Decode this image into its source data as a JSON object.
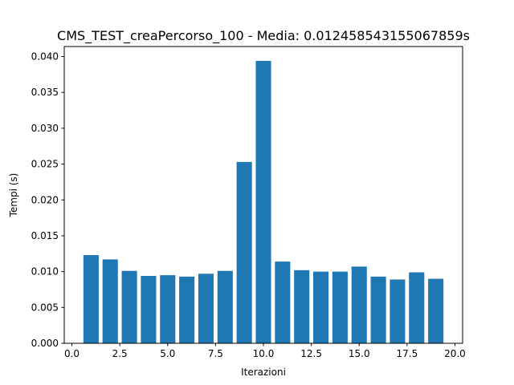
{
  "chart_data": {
    "type": "bar",
    "title": "CMS_TEST_creaPercorso_100 - Media: 0.012458543155067859s",
    "xlabel": "Iterazioni",
    "ylabel": "Tempi (s)",
    "x": [
      1,
      2,
      3,
      4,
      5,
      6,
      7,
      8,
      9,
      10,
      11,
      12,
      13,
      14,
      15,
      16,
      17,
      18,
      19
    ],
    "values": [
      0.0123,
      0.0117,
      0.0101,
      0.0094,
      0.0095,
      0.0093,
      0.0097,
      0.0101,
      0.0253,
      0.0394,
      0.0114,
      0.0102,
      0.01,
      0.01,
      0.0107,
      0.0093,
      0.0089,
      0.0099,
      0.009
    ],
    "xlim": [
      -0.4,
      20.4
    ],
    "ylim": [
      0,
      0.0414
    ],
    "xticks": [
      0.0,
      2.5,
      5.0,
      7.5,
      10.0,
      12.5,
      15.0,
      17.5,
      20.0
    ],
    "xtick_labels": [
      "0.0",
      "2.5",
      "5.0",
      "7.5",
      "10.0",
      "12.5",
      "15.0",
      "17.5",
      "20.0"
    ],
    "yticks": [
      0.0,
      0.005,
      0.01,
      0.015,
      0.02,
      0.025,
      0.03,
      0.035,
      0.04
    ],
    "ytick_labels": [
      "0.000",
      "0.005",
      "0.010",
      "0.015",
      "0.020",
      "0.025",
      "0.030",
      "0.035",
      "0.040"
    ],
    "bar_width": 0.8,
    "bar_color": "#1f77b4",
    "grid": false,
    "legend": "none"
  }
}
